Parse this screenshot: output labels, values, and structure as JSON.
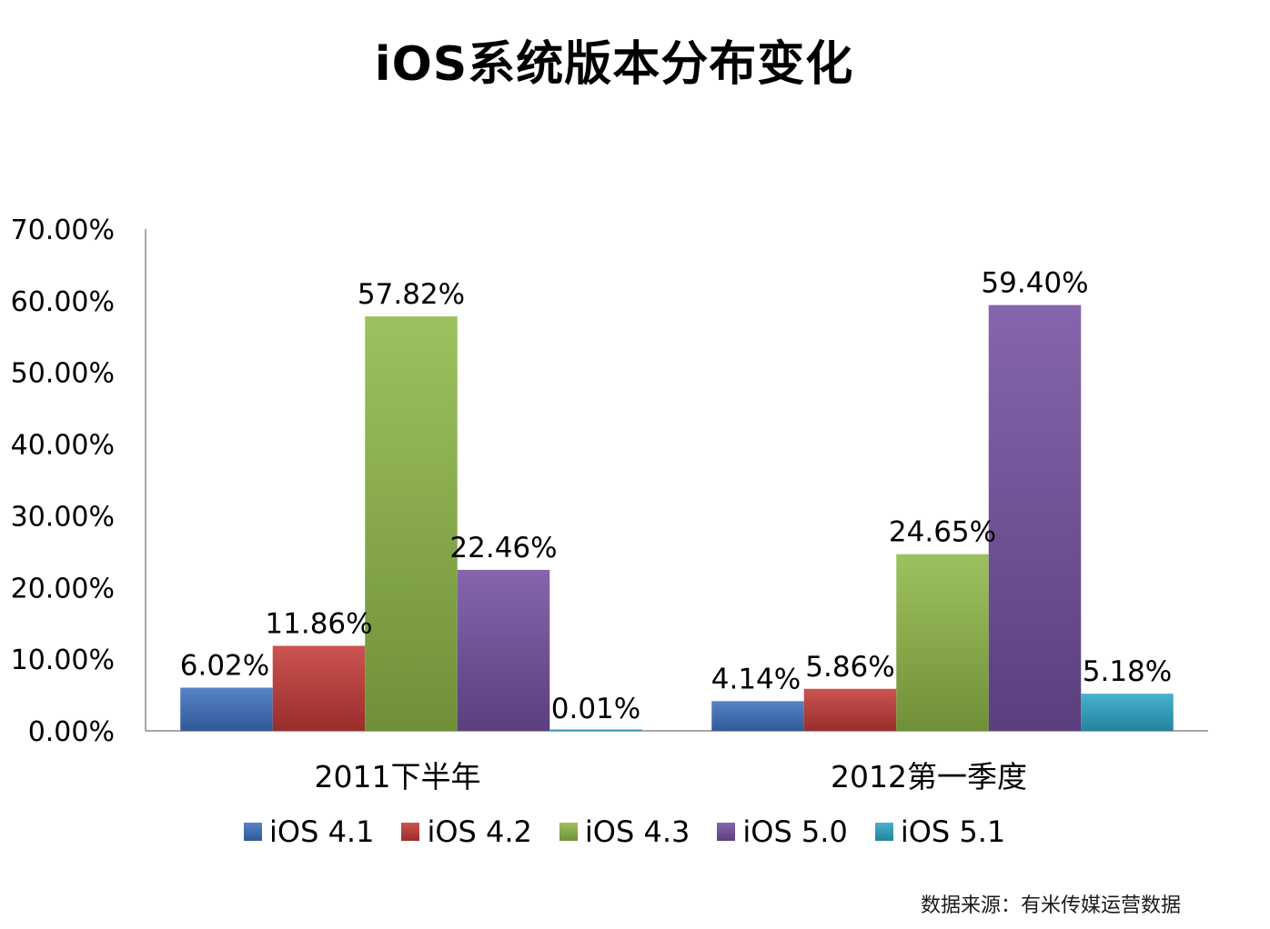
{
  "chart_data": {
    "type": "bar",
    "title": "iOS系统版本分布变化",
    "categories": [
      "2011下半年",
      "2012第一季度"
    ],
    "series": [
      {
        "name": "iOS 4.1",
        "values": [
          6.02,
          4.14
        ],
        "labels": [
          "6.02%",
          "4.14%"
        ],
        "color": "#3f72c0"
      },
      {
        "name": "iOS 4.2",
        "values": [
          11.86,
          5.86
        ],
        "labels": [
          "11.86%",
          "5.86%"
        ],
        "color": "#c43b39"
      },
      {
        "name": "iOS 4.3",
        "values": [
          57.82,
          24.65
        ],
        "labels": [
          "57.82%",
          "24.65%"
        ],
        "color": "#90b848"
      },
      {
        "name": "iOS 5.0",
        "values": [
          22.46,
          59.4
        ],
        "labels": [
          "22.46%",
          "59.40%"
        ],
        "color": "#7451a1"
      },
      {
        "name": "iOS 5.1",
        "values": [
          0.01,
          5.18
        ],
        "labels": [
          "0.01%",
          "5.18%"
        ],
        "color": "#2ea8c8"
      }
    ],
    "yticks": [
      0,
      10,
      20,
      30,
      40,
      50,
      60,
      70
    ],
    "ytick_labels": [
      "0.00%",
      "10.00%",
      "20.00%",
      "30.00%",
      "40.00%",
      "50.00%",
      "60.00%",
      "70.00%"
    ],
    "ylim": [
      0,
      70
    ],
    "xlabel": "",
    "ylabel": "",
    "grid": false,
    "legend_position": "bottom"
  },
  "source_note": "数据来源：有米传媒运营数据"
}
